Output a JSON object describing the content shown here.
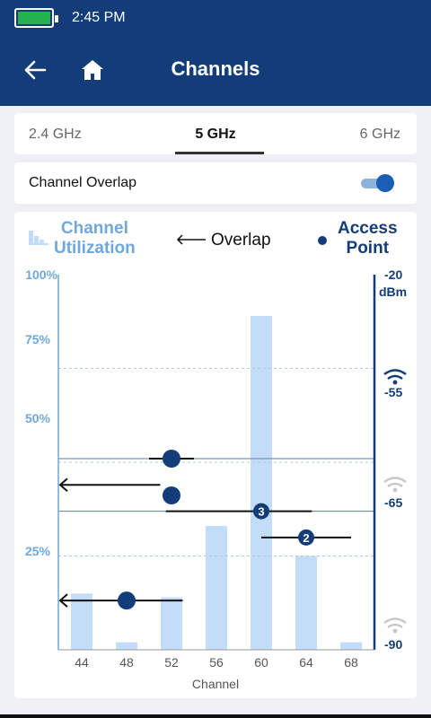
{
  "status_bar": {
    "time": "2:45 PM",
    "battery_color": "#22b14c"
  },
  "header": {
    "title": "Channels",
    "background": "#133d78"
  },
  "tabs": [
    {
      "label": "2.4 GHz",
      "selected": false
    },
    {
      "label": "5 GHz",
      "selected": true
    },
    {
      "label": "6 GHz",
      "selected": false
    }
  ],
  "overlap_setting": {
    "label": "Channel Overlap",
    "enabled": true
  },
  "legend": {
    "utilization_line1": "Channel",
    "utilization_line2": "Utilization",
    "overlap": "Overlap",
    "ap_line1": "Access",
    "ap_line2": "Point"
  },
  "colors": {
    "utilization": "#6fa8dc",
    "bar": "#c3ddf8",
    "access_point": "#133d78",
    "overlap_line": "#111111"
  },
  "chart_data": {
    "type": "bar",
    "xlabel": "Channel",
    "categories": [
      "44",
      "48",
      "52",
      "56",
      "60",
      "64",
      "68"
    ],
    "utilization_values": [
      15,
      2,
      14,
      33,
      89,
      25,
      2
    ],
    "left_axis": {
      "ticks": [
        "100%",
        "75%",
        "50%",
        "25%"
      ],
      "tick_values": [
        100,
        75,
        50,
        25
      ],
      "range": [
        0,
        100
      ]
    },
    "right_axis": {
      "ticks": [
        "-20",
        "-55",
        "-65",
        "-90"
      ],
      "unit": "dBm",
      "tick_values": [
        -20,
        -55,
        -65,
        -90
      ],
      "range": [
        -90,
        -20
      ]
    },
    "access_points": [
      {
        "channel": "52",
        "rssi": -55,
        "badge": "",
        "overlap_from": "50",
        "overlap_to": "54"
      },
      {
        "channel": "52",
        "rssi": -62,
        "badge": "",
        "overlap_from": "",
        "overlap_to": ""
      },
      {
        "channel": "60",
        "rssi": -65,
        "badge": "3",
        "overlap_from": "51.5",
        "overlap_to": "64.5"
      },
      {
        "channel": "64",
        "rssi": -70,
        "badge": "2",
        "overlap_from": "60",
        "overlap_to": "68"
      },
      {
        "channel": "48",
        "rssi": -82,
        "badge": "",
        "overlap_from": "<44",
        "overlap_to": "53"
      }
    ],
    "overlap_arrows": [
      {
        "rssi": -60,
        "from": "<44",
        "to": "51"
      }
    ],
    "signal_icons": [
      "-55",
      "-65",
      "-90"
    ]
  }
}
